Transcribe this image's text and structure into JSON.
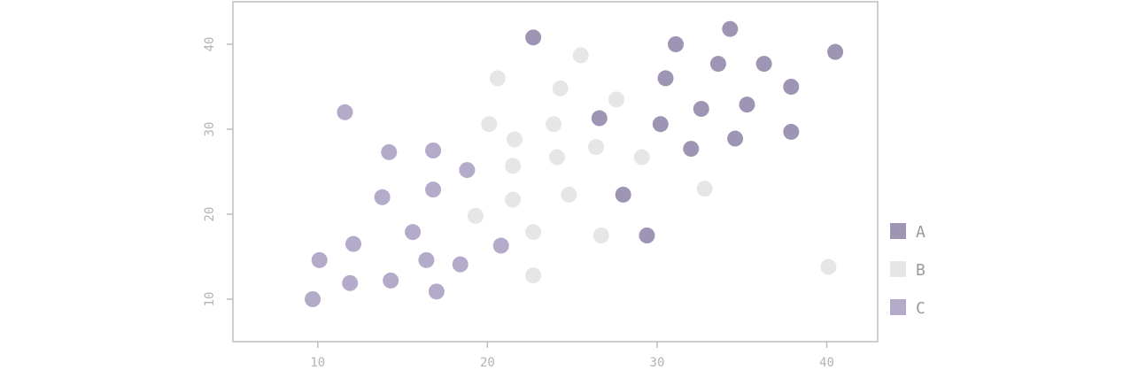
{
  "chart_data": {
    "type": "scatter",
    "title": "",
    "xlabel": "",
    "ylabel": "",
    "xlim": [
      5,
      43
    ],
    "ylim": [
      5,
      45
    ],
    "xticks": [
      10,
      20,
      30,
      40
    ],
    "yticks": [
      10,
      20,
      30,
      40
    ],
    "grid": false,
    "legend_position": "right",
    "series": [
      {
        "name": "A",
        "color": "#9e95b4",
        "points": [
          [
            22.7,
            40.8
          ],
          [
            31.1,
            40.0
          ],
          [
            34.3,
            41.8
          ],
          [
            33.6,
            37.7
          ],
          [
            36.3,
            37.7
          ],
          [
            40.5,
            39.1
          ],
          [
            30.5,
            36.0
          ],
          [
            37.9,
            35.0
          ],
          [
            26.6,
            31.3
          ],
          [
            32.6,
            32.4
          ],
          [
            35.3,
            32.9
          ],
          [
            30.2,
            30.6
          ],
          [
            37.9,
            29.7
          ],
          [
            34.6,
            28.9
          ],
          [
            32.0,
            27.7
          ],
          [
            28.0,
            22.3
          ],
          [
            29.4,
            17.5
          ]
        ]
      },
      {
        "name": "B",
        "color": "#e6e6e6",
        "points": [
          [
            25.5,
            38.7
          ],
          [
            20.6,
            36.0
          ],
          [
            24.3,
            34.8
          ],
          [
            27.6,
            33.5
          ],
          [
            20.1,
            30.6
          ],
          [
            23.9,
            30.6
          ],
          [
            21.6,
            28.8
          ],
          [
            26.4,
            27.9
          ],
          [
            24.1,
            26.7
          ],
          [
            29.1,
            26.7
          ],
          [
            21.5,
            25.7
          ],
          [
            24.8,
            22.3
          ],
          [
            32.8,
            23.0
          ],
          [
            21.5,
            21.7
          ],
          [
            19.3,
            19.8
          ],
          [
            22.7,
            17.9
          ],
          [
            26.7,
            17.5
          ],
          [
            22.7,
            12.8
          ],
          [
            40.1,
            13.8
          ]
        ]
      },
      {
        "name": "C",
        "color": "#b3abc9",
        "points": [
          [
            11.6,
            32.0
          ],
          [
            14.2,
            27.3
          ],
          [
            16.8,
            27.5
          ],
          [
            18.8,
            25.2
          ],
          [
            13.8,
            22.0
          ],
          [
            16.8,
            22.9
          ],
          [
            15.6,
            17.9
          ],
          [
            12.1,
            16.5
          ],
          [
            10.1,
            14.6
          ],
          [
            16.4,
            14.6
          ],
          [
            18.4,
            14.1
          ],
          [
            20.8,
            16.3
          ],
          [
            11.9,
            11.9
          ],
          [
            14.3,
            12.2
          ],
          [
            17.0,
            10.9
          ],
          [
            9.7,
            10.0
          ]
        ]
      }
    ]
  }
}
